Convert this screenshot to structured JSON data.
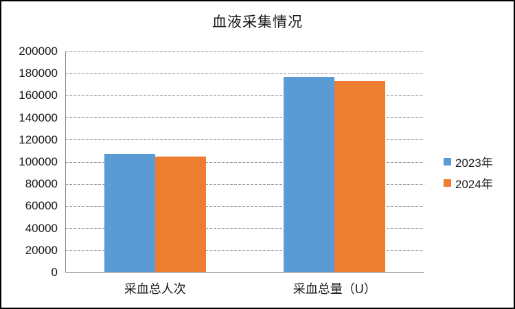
{
  "frame": {
    "background": "#ffffff",
    "border_color": "#000000"
  },
  "colors": {
    "axis": "#8c8c8c",
    "gridline": "#8c8c8c",
    "text": "#1a1a1a",
    "series_2023": "#5B9BD5",
    "series_2024": "#ED7D31"
  },
  "chart_data": {
    "type": "bar",
    "title": "血液采集情况",
    "categories": [
      "采血总人次",
      "采血总量（U）"
    ],
    "series": [
      {
        "name": "2023年",
        "color": "#5B9BD5",
        "values": [
          107000,
          176200
        ]
      },
      {
        "name": "2024年",
        "color": "#ED7D31",
        "values": [
          104200,
          172600
        ]
      }
    ],
    "xlabel": "",
    "ylabel": "",
    "ylim": [
      0,
      200000
    ],
    "ytick_step": 20000,
    "ytick_labels": [
      "0",
      "20000",
      "40000",
      "60000",
      "80000",
      "100000",
      "120000",
      "140000",
      "160000",
      "180000",
      "200000"
    ],
    "grid": "horizontal-dashed",
    "legend_position": "right"
  }
}
